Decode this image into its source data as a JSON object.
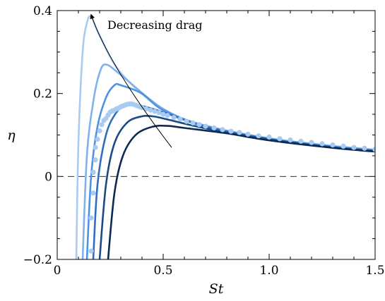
{
  "chart_data": {
    "type": "line",
    "xlabel": "St",
    "ylabel": "η",
    "xlim": [
      0,
      1.5
    ],
    "ylim": [
      -0.2,
      0.4
    ],
    "x_ticks": [
      "0",
      "0.5",
      "1.0",
      "1.5"
    ],
    "y_ticks": [
      "−0.2",
      "0",
      "0.2",
      "0.4"
    ],
    "minor_ticks": true,
    "reference_line": {
      "y": 0,
      "style": "dashed"
    },
    "annotation": {
      "text": "Decreasing drag",
      "arrow": {
        "from": [
          0.54,
          0.07
        ],
        "to": [
          0.16,
          0.39
        ]
      }
    },
    "series": [
      {
        "color": "#a9cbf2",
        "points": [
          [
            0.09,
            -0.2
          ],
          [
            0.1,
            0.08
          ],
          [
            0.12,
            0.3
          ],
          [
            0.14,
            0.37
          ],
          [
            0.16,
            0.385
          ],
          [
            0.2,
            0.34
          ],
          [
            0.3,
            0.25
          ],
          [
            0.5,
            0.16
          ],
          [
            0.7,
            0.123
          ],
          [
            1.0,
            0.092
          ],
          [
            1.3,
            0.074
          ],
          [
            1.5,
            0.065
          ]
        ]
      },
      {
        "color": "#7fb1ec",
        "points": [
          [
            0.12,
            -0.2
          ],
          [
            0.14,
            0.05
          ],
          [
            0.17,
            0.18
          ],
          [
            0.2,
            0.25
          ],
          [
            0.23,
            0.27
          ],
          [
            0.3,
            0.245
          ],
          [
            0.5,
            0.163
          ],
          [
            0.7,
            0.122
          ],
          [
            1.0,
            0.092
          ],
          [
            1.3,
            0.073
          ],
          [
            1.5,
            0.064
          ]
        ]
      },
      {
        "color": "#4d93e3",
        "points": [
          [
            0.14,
            -0.2
          ],
          [
            0.16,
            0.0
          ],
          [
            0.19,
            0.12
          ],
          [
            0.23,
            0.19
          ],
          [
            0.27,
            0.22
          ],
          [
            0.3,
            0.22
          ],
          [
            0.4,
            0.2
          ],
          [
            0.5,
            0.16
          ],
          [
            0.7,
            0.122
          ],
          [
            1.0,
            0.091
          ],
          [
            1.3,
            0.072
          ],
          [
            1.5,
            0.063
          ]
        ]
      },
      {
        "color": "#2f6fbe",
        "points": [
          [
            0.17,
            -0.2
          ],
          [
            0.19,
            -0.02
          ],
          [
            0.23,
            0.1
          ],
          [
            0.28,
            0.155
          ],
          [
            0.33,
            0.175
          ],
          [
            0.4,
            0.17
          ],
          [
            0.5,
            0.155
          ],
          [
            0.7,
            0.12
          ],
          [
            1.0,
            0.09
          ],
          [
            1.3,
            0.071
          ],
          [
            1.5,
            0.062
          ]
        ]
      },
      {
        "color": "#1c4a86",
        "points": [
          [
            0.2,
            -0.2
          ],
          [
            0.23,
            -0.02
          ],
          [
            0.27,
            0.08
          ],
          [
            0.33,
            0.13
          ],
          [
            0.4,
            0.145
          ],
          [
            0.45,
            0.145
          ],
          [
            0.5,
            0.14
          ],
          [
            0.7,
            0.116
          ],
          [
            1.0,
            0.089
          ],
          [
            1.3,
            0.07
          ],
          [
            1.5,
            0.061
          ]
        ]
      },
      {
        "color": "#0d2a52",
        "points": [
          [
            0.24,
            -0.2
          ],
          [
            0.27,
            -0.04
          ],
          [
            0.31,
            0.05
          ],
          [
            0.37,
            0.1
          ],
          [
            0.45,
            0.12
          ],
          [
            0.52,
            0.122
          ],
          [
            0.6,
            0.117
          ],
          [
            0.8,
            0.104
          ],
          [
            1.0,
            0.087
          ],
          [
            1.3,
            0.069
          ],
          [
            1.5,
            0.06
          ]
        ]
      }
    ],
    "scatter": {
      "color": "#a9cbf2",
      "points": [
        [
          0.16,
          -0.18
        ],
        [
          0.16,
          -0.1
        ],
        [
          0.17,
          -0.04
        ],
        [
          0.17,
          0.01
        ],
        [
          0.18,
          0.04
        ],
        [
          0.18,
          0.07
        ],
        [
          0.19,
          0.09
        ],
        [
          0.2,
          0.11
        ],
        [
          0.21,
          0.125
        ],
        [
          0.22,
          0.135
        ],
        [
          0.23,
          0.14
        ],
        [
          0.24,
          0.148
        ],
        [
          0.25,
          0.155
        ],
        [
          0.26,
          0.158
        ],
        [
          0.27,
          0.16
        ],
        [
          0.28,
          0.163
        ],
        [
          0.29,
          0.165
        ],
        [
          0.3,
          0.168
        ],
        [
          0.31,
          0.17
        ],
        [
          0.32,
          0.172
        ],
        [
          0.33,
          0.174
        ],
        [
          0.34,
          0.175
        ],
        [
          0.35,
          0.175
        ],
        [
          0.36,
          0.174
        ],
        [
          0.37,
          0.172
        ],
        [
          0.38,
          0.17
        ],
        [
          0.39,
          0.168
        ],
        [
          0.4,
          0.166
        ],
        [
          0.42,
          0.163
        ],
        [
          0.44,
          0.16
        ],
        [
          0.46,
          0.157
        ],
        [
          0.48,
          0.154
        ],
        [
          0.5,
          0.15
        ],
        [
          0.52,
          0.147
        ],
        [
          0.55,
          0.142
        ],
        [
          0.58,
          0.138
        ],
        [
          0.61,
          0.133
        ],
        [
          0.64,
          0.129
        ],
        [
          0.67,
          0.125
        ],
        [
          0.7,
          0.121
        ],
        [
          0.74,
          0.117
        ],
        [
          0.78,
          0.113
        ],
        [
          0.82,
          0.109
        ],
        [
          0.86,
          0.106
        ],
        [
          0.9,
          0.102
        ],
        [
          0.95,
          0.098
        ],
        [
          1.0,
          0.095
        ],
        [
          1.05,
          0.091
        ],
        [
          1.1,
          0.088
        ],
        [
          1.15,
          0.085
        ],
        [
          1.2,
          0.082
        ],
        [
          1.25,
          0.079
        ],
        [
          1.3,
          0.076
        ],
        [
          1.35,
          0.073
        ],
        [
          1.4,
          0.07
        ],
        [
          1.45,
          0.068
        ],
        [
          1.5,
          0.065
        ]
      ]
    }
  }
}
